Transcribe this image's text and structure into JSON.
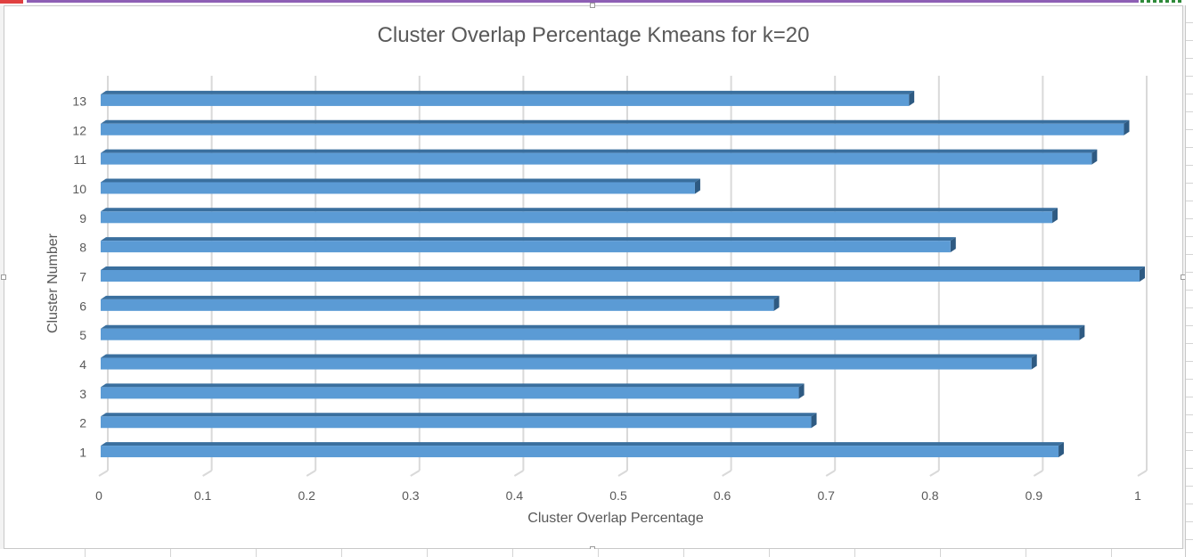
{
  "chart_data": {
    "type": "bar",
    "orientation": "horizontal",
    "title": "Cluster Overlap Percentage Kmeans for k=20",
    "xlabel": "Cluster Overlap Percentage",
    "ylabel": "Cluster Number",
    "categories": [
      "1",
      "2",
      "3",
      "4",
      "5",
      "6",
      "7",
      "8",
      "9",
      "10",
      "11",
      "12",
      "13"
    ],
    "values": [
      0.922,
      0.684,
      0.672,
      0.896,
      0.942,
      0.648,
      1.0,
      0.818,
      0.916,
      0.572,
      0.954,
      0.985,
      0.778
    ],
    "xlim": [
      0,
      1
    ],
    "xticks": [
      "0",
      "0.1",
      "0.2",
      "0.3",
      "0.4",
      "0.5",
      "0.6",
      "0.7",
      "0.8",
      "0.9",
      "1"
    ],
    "grid": "vertical",
    "legend": "none",
    "colors": {
      "bar_front": "#5b9bd5",
      "bar_top": "#3a6f9e",
      "bar_side": "#2e5a82",
      "grid": "#d9d9d9",
      "text": "#595959"
    }
  }
}
